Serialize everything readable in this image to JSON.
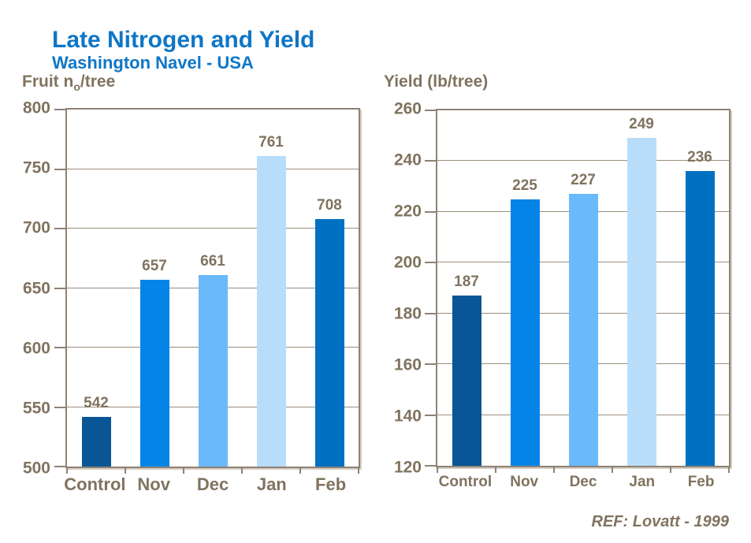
{
  "header": {
    "title": "Late Nitrogen and Yield",
    "subtitle": "Washington Navel - USA"
  },
  "footer": {
    "reference": "REF: Lovatt - 1999"
  },
  "colors": {
    "title_blue": "#0e76c6",
    "axis_text": "#80735f",
    "frame": "#8e8275",
    "gridline": "#9a8e7e",
    "bar_control": "#0a5596",
    "bar_nov": "#0584e8",
    "bar_dec": "#6ab9fa",
    "bar_jan": "#b8ddfa",
    "bar_feb": "#0071c2"
  },
  "chart_data": [
    {
      "type": "bar",
      "title_parts": {
        "pre": "Fruit n",
        "sub": "o",
        "post": "/tree"
      },
      "categories": [
        "Control",
        "Nov",
        "Dec",
        "Jan",
        "Feb"
      ],
      "values": [
        542,
        657,
        661,
        761,
        708
      ],
      "bar_colors": [
        "#0a5596",
        "#0584e8",
        "#6ab9fa",
        "#b8ddfa",
        "#0071c2"
      ],
      "ylim": [
        500,
        800
      ],
      "ytick_step": 50,
      "grid": true,
      "legend": false,
      "data_labels": true
    },
    {
      "type": "bar",
      "title_parts": {
        "pre": "Yield (lb/tree)",
        "sub": "",
        "post": ""
      },
      "categories": [
        "Control",
        "Nov",
        "Dec",
        "Jan",
        "Feb"
      ],
      "values": [
        187,
        225,
        227,
        249,
        236
      ],
      "bar_colors": [
        "#0a5596",
        "#0584e8",
        "#6ab9fa",
        "#b8ddfa",
        "#0071c2"
      ],
      "ylim": [
        120,
        260
      ],
      "ytick_step": 20,
      "grid": true,
      "legend": false,
      "data_labels": true
    }
  ]
}
